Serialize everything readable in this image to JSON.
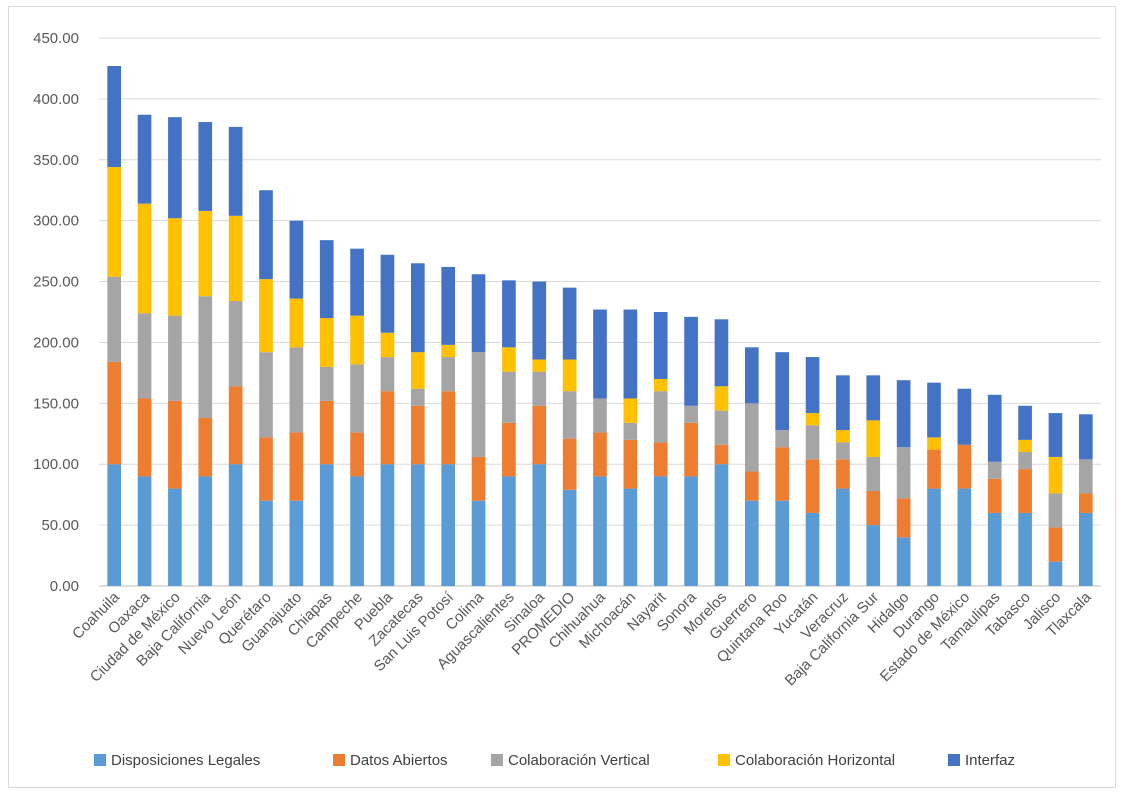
{
  "chart_data": {
    "type": "bar",
    "stacked": true,
    "ylim": [
      0,
      450
    ],
    "yticks": [
      "0.00",
      "50.00",
      "100.00",
      "150.00",
      "200.00",
      "250.00",
      "300.00",
      "350.00",
      "400.00",
      "450.00"
    ],
    "grid": true,
    "legend_position": "bottom",
    "categories": [
      "Coahuila",
      "Oaxaca",
      "Ciudad de México",
      "Baja California",
      "Nuevo León",
      "Querétaro",
      "Guanajuato",
      "Chiapas",
      "Campeche",
      "Puebla",
      "Zacatecas",
      "San Luis Potosí",
      "Colima",
      "Aguascalientes",
      "Sinaloa",
      "PROMEDIO",
      "Chihuahua",
      "Michoacán",
      "Nayarit",
      "Sonora",
      "Morelos",
      "Guerrero",
      "Quintana Roo",
      "Yucatán",
      "Veracruz",
      "Baja California Sur",
      "Hidalgo",
      "Durango",
      "Estado de México",
      "Tamaulipas",
      "Tabasco",
      "Jalisco",
      "Tlaxcala"
    ],
    "series": [
      {
        "name": "Disposiciones Legales",
        "color": "#5B9BD5",
        "values": [
          100,
          90,
          80,
          90,
          100,
          70,
          70,
          100,
          90,
          100,
          100,
          100,
          70,
          90,
          100,
          79,
          90,
          80,
          90,
          90,
          100,
          70,
          70,
          60,
          80,
          50,
          40,
          80,
          80,
          60,
          60,
          20,
          60
        ]
      },
      {
        "name": "Datos Abiertos",
        "color": "#ED7D31",
        "values": [
          84,
          64,
          72,
          48,
          64,
          52,
          56,
          52,
          36,
          60,
          48,
          60,
          36,
          44,
          48,
          42,
          36,
          40,
          28,
          44,
          16,
          24,
          44,
          44,
          24,
          28,
          32,
          32,
          36,
          28,
          36,
          28,
          16
        ]
      },
      {
        "name": "Colaboración Vertical",
        "color": "#A5A5A5",
        "values": [
          70,
          70,
          70,
          100,
          70,
          70,
          70,
          28,
          56,
          28,
          14,
          28,
          86,
          42,
          28,
          39,
          28,
          14,
          42,
          14,
          28,
          56,
          14,
          28,
          14,
          28,
          42,
          0,
          0,
          14,
          14,
          28,
          28
        ]
      },
      {
        "name": "Colaboración Horizontal",
        "color": "#FFC000",
        "values": [
          90,
          90,
          80,
          70,
          70,
          60,
          40,
          40,
          40,
          20,
          30,
          10,
          0,
          20,
          10,
          26,
          0,
          20,
          10,
          0,
          20,
          0,
          0,
          10,
          10,
          30,
          0,
          10,
          0,
          0,
          10,
          30,
          0
        ]
      },
      {
        "name": "Interfaz",
        "color": "#4472C4",
        "values": [
          83,
          73,
          83,
          73,
          73,
          73,
          64,
          64,
          55,
          64,
          73,
          64,
          64,
          55,
          64,
          59,
          73,
          73,
          55,
          73,
          55,
          46,
          64,
          46,
          45,
          37,
          55,
          45,
          46,
          55,
          28,
          36,
          37
        ]
      }
    ]
  }
}
